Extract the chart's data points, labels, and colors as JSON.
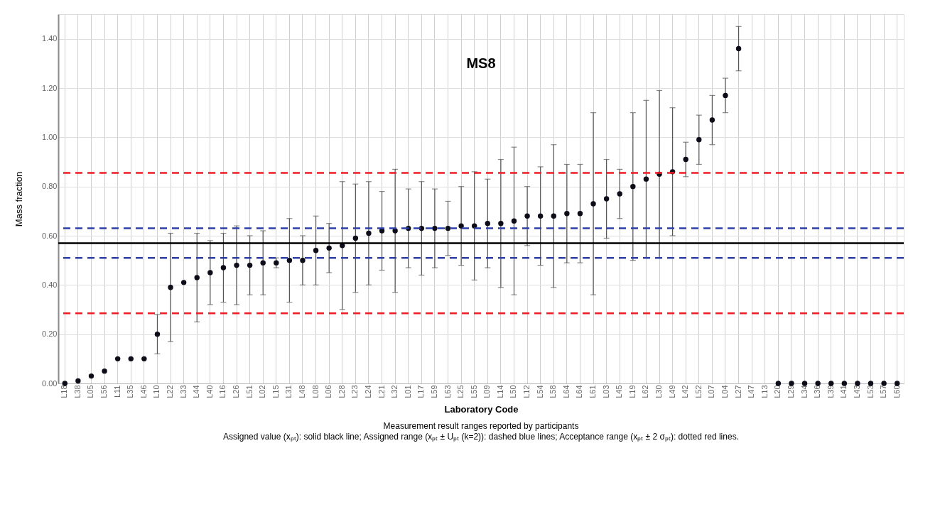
{
  "chart_data": {
    "type": "scatter",
    "title": "MS8",
    "xlabel": "Laboratory Code",
    "ylabel": "Mass fraction",
    "categories": [
      "L18",
      "L38",
      "L05",
      "L56",
      "L11",
      "L35",
      "L46",
      "L10",
      "L22",
      "L33",
      "L44",
      "L40",
      "L16",
      "L26",
      "L51",
      "L02",
      "L15",
      "L31",
      "L48",
      "L08",
      "L06",
      "L28",
      "L23",
      "L24",
      "L21",
      "L32",
      "L01",
      "L17",
      "L59",
      "L63",
      "L25",
      "L55",
      "L09",
      "L14",
      "L50",
      "L12",
      "L54",
      "L58",
      "L64",
      "L64",
      "L61",
      "L03",
      "L45",
      "L19",
      "L62",
      "L30",
      "L49",
      "L42",
      "L52",
      "L07",
      "L04",
      "L27",
      "L47",
      "L13",
      "L20",
      "L29",
      "L34",
      "L36",
      "L39",
      "L41",
      "L43",
      "L53",
      "L57",
      "L60"
    ],
    "series": [
      {
        "color": "#0d0d1a",
        "values": [
          0.0,
          0.01,
          0.03,
          0.05,
          0.1,
          0.1,
          0.1,
          0.2,
          0.39,
          0.41,
          0.43,
          0.45,
          0.47,
          0.48,
          0.48,
          0.49,
          0.49,
          0.5,
          0.5,
          0.54,
          0.55,
          0.56,
          0.59,
          0.61,
          0.62,
          0.62,
          0.63,
          0.63,
          0.63,
          0.63,
          0.64,
          0.64,
          0.65,
          0.65,
          0.66,
          0.68,
          0.68,
          0.68,
          0.69,
          0.69,
          0.73,
          0.75,
          0.77,
          0.8,
          0.83,
          0.85,
          0.86,
          0.91,
          0.99,
          1.07,
          1.17,
          1.36,
          null,
          null,
          0.0,
          0.0,
          0.0,
          0.0,
          0.0,
          0.0,
          0.0,
          0.0,
          0.0,
          0.0
        ],
        "errors": [
          null,
          null,
          null,
          null,
          null,
          null,
          null,
          [
            0.12,
            0.28
          ],
          [
            0.17,
            0.61
          ],
          null,
          [
            0.25,
            0.61
          ],
          [
            0.32,
            0.58
          ],
          [
            0.33,
            0.61
          ],
          [
            0.32,
            0.64
          ],
          [
            0.36,
            0.6
          ],
          [
            0.36,
            0.62
          ],
          [
            0.47,
            0.51
          ],
          [
            0.33,
            0.67
          ],
          [
            0.4,
            0.6
          ],
          [
            0.4,
            0.68
          ],
          [
            0.45,
            0.65
          ],
          [
            0.3,
            0.82
          ],
          [
            0.37,
            0.81
          ],
          [
            0.4,
            0.82
          ],
          [
            0.46,
            0.78
          ],
          [
            0.37,
            0.87
          ],
          [
            0.47,
            0.79
          ],
          [
            0.44,
            0.82
          ],
          [
            0.47,
            0.79
          ],
          [
            0.52,
            0.74
          ],
          [
            0.48,
            0.8
          ],
          [
            0.42,
            0.86
          ],
          [
            0.47,
            0.83
          ],
          [
            0.39,
            0.91
          ],
          [
            0.36,
            0.96
          ],
          [
            0.56,
            0.8
          ],
          [
            0.48,
            0.88
          ],
          [
            0.39,
            0.97
          ],
          [
            0.49,
            0.89
          ],
          [
            0.49,
            0.89
          ],
          [
            0.36,
            1.1
          ],
          [
            0.59,
            0.91
          ],
          [
            0.67,
            0.87
          ],
          [
            0.5,
            1.1
          ],
          [
            0.51,
            1.15
          ],
          [
            0.51,
            1.19
          ],
          [
            0.6,
            1.12
          ],
          [
            0.84,
            0.98
          ],
          [
            0.89,
            1.09
          ],
          [
            0.97,
            1.17
          ],
          [
            1.1,
            1.24
          ],
          [
            1.27,
            1.45
          ],
          null,
          null,
          null,
          null,
          null,
          null,
          null,
          null,
          null,
          null,
          null,
          null
        ]
      }
    ],
    "ylim": [
      0,
      1.5
    ],
    "yticks": [
      {
        "value": 0,
        "label": "0.00"
      },
      {
        "value": 0.2,
        "label": "0.20"
      },
      {
        "value": 0.4,
        "label": "0.40"
      },
      {
        "value": 0.6,
        "label": "0.60"
      },
      {
        "value": 0.8,
        "label": "0.80"
      },
      {
        "value": 1.0,
        "label": "1.00"
      },
      {
        "value": 1.2,
        "label": "1.20"
      },
      {
        "value": 1.4,
        "label": "1.40"
      }
    ],
    "grid": true,
    "marker": "circle",
    "ref_lines": [
      {
        "axis": "y",
        "value": 0.57,
        "color": "#000000",
        "line_style": "solid"
      },
      {
        "axis": "y",
        "value": 0.63,
        "color": "#2e3fa8",
        "line_style": "dashed"
      },
      {
        "axis": "y",
        "value": 0.51,
        "color": "#2e3fa8",
        "line_style": "dashed"
      },
      {
        "axis": "y",
        "value": 0.855,
        "color": "#ee1c25",
        "line_style": "dashed"
      },
      {
        "axis": "y",
        "value": 0.285,
        "color": "#ee1c25",
        "line_style": "dashed"
      }
    ],
    "annotations": [
      "Measurement result ranges reported by participants",
      "Assigned value (xₚₜ): solid black line; Assigned range (xₚₜ ± Uₚₜ (k=2)): dashed blue lines;  Acceptance range (xₚₜ ± 2 σₚₜ): dotted red lines."
    ]
  }
}
